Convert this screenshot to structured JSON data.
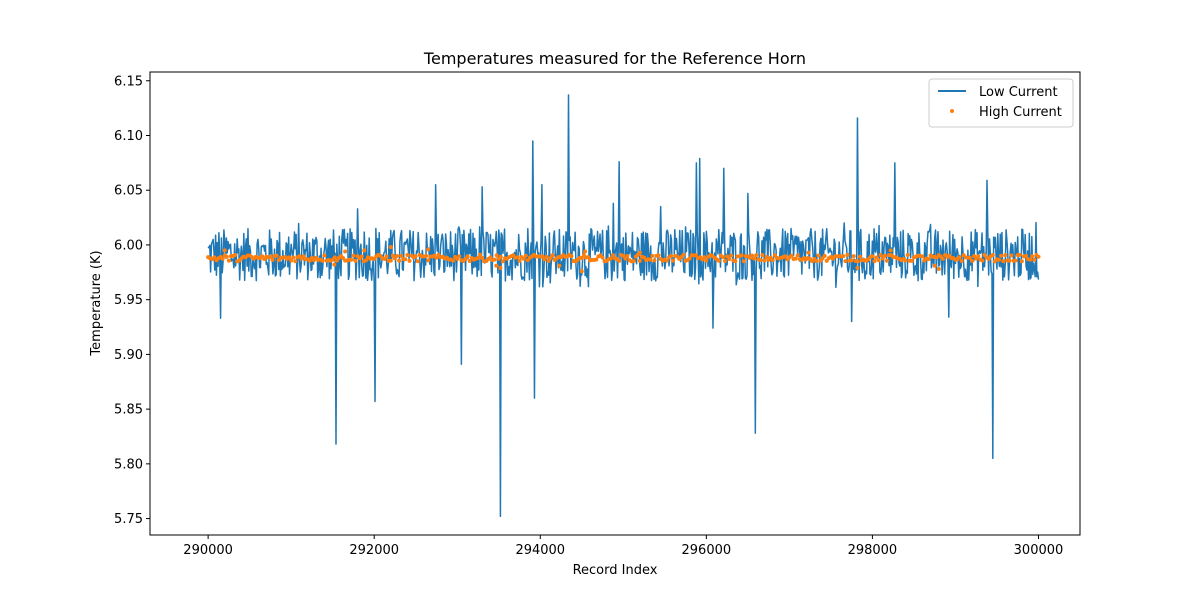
{
  "chart_data": {
    "type": "line",
    "title": "Temperatures measured for the Reference Horn",
    "xlabel": "Record Index",
    "ylabel": "Temperature (K)",
    "xlim": [
      289300,
      300500
    ],
    "ylim": [
      5.735,
      6.158
    ],
    "xticks": [
      290000,
      292000,
      294000,
      296000,
      298000,
      300000
    ],
    "yticks": [
      5.75,
      5.8,
      5.85,
      5.9,
      5.95,
      6.0,
      6.05,
      6.1,
      6.15
    ],
    "ytick_labels": [
      "5.75",
      "5.80",
      "5.85",
      "5.90",
      "5.95",
      "6.00",
      "6.05",
      "6.10",
      "6.15"
    ],
    "grid": false,
    "legend_position": "top-right",
    "colors": {
      "low": "#1f77b4",
      "high": "#ff7f0e"
    },
    "series": [
      {
        "name": "Low Current",
        "style": "line",
        "x_range": [
          290000,
          300000
        ],
        "band_low": 5.967,
        "band_high": 6.015,
        "x_step": 10,
        "spikes": [
          {
            "x": 291540,
            "y": 5.818
          },
          {
            "x": 292010,
            "y": 5.857
          },
          {
            "x": 292740,
            "y": 6.055
          },
          {
            "x": 293050,
            "y": 5.891
          },
          {
            "x": 293300,
            "y": 6.053
          },
          {
            "x": 293520,
            "y": 5.752
          },
          {
            "x": 293910,
            "y": 6.095
          },
          {
            "x": 293930,
            "y": 5.86
          },
          {
            "x": 294020,
            "y": 6.055
          },
          {
            "x": 294340,
            "y": 6.137
          },
          {
            "x": 294950,
            "y": 6.076
          },
          {
            "x": 295880,
            "y": 6.075
          },
          {
            "x": 295920,
            "y": 6.079
          },
          {
            "x": 296210,
            "y": 6.07
          },
          {
            "x": 296500,
            "y": 6.047
          },
          {
            "x": 296590,
            "y": 5.828
          },
          {
            "x": 297820,
            "y": 6.116
          },
          {
            "x": 298270,
            "y": 6.075
          },
          {
            "x": 299380,
            "y": 6.059
          },
          {
            "x": 299450,
            "y": 5.805
          },
          {
            "x": 290150,
            "y": 5.933
          },
          {
            "x": 296080,
            "y": 5.924
          },
          {
            "x": 297750,
            "y": 5.93
          },
          {
            "x": 291800,
            "y": 6.033
          },
          {
            "x": 294880,
            "y": 6.038
          },
          {
            "x": 295450,
            "y": 6.035
          },
          {
            "x": 298920,
            "y": 5.934
          }
        ]
      },
      {
        "name": "High Current",
        "style": "scatter",
        "x_range": [
          290000,
          300000
        ],
        "center": 5.988,
        "spread": 0.003,
        "x_step": 25,
        "outliers": [
          {
            "x": 290200,
            "y": 5.995
          },
          {
            "x": 291520,
            "y": 5.982
          },
          {
            "x": 291650,
            "y": 5.994
          },
          {
            "x": 291880,
            "y": 5.995
          },
          {
            "x": 292200,
            "y": 5.998
          },
          {
            "x": 292650,
            "y": 5.996
          },
          {
            "x": 293470,
            "y": 5.981
          },
          {
            "x": 293520,
            "y": 5.979
          },
          {
            "x": 294230,
            "y": 5.981
          },
          {
            "x": 294500,
            "y": 5.976
          },
          {
            "x": 294540,
            "y": 5.994
          },
          {
            "x": 295200,
            "y": 5.993
          },
          {
            "x": 297230,
            "y": 5.993
          },
          {
            "x": 297820,
            "y": 5.979
          },
          {
            "x": 298220,
            "y": 5.995
          },
          {
            "x": 298750,
            "y": 5.981
          },
          {
            "x": 298800,
            "y": 5.978
          }
        ]
      }
    ]
  }
}
